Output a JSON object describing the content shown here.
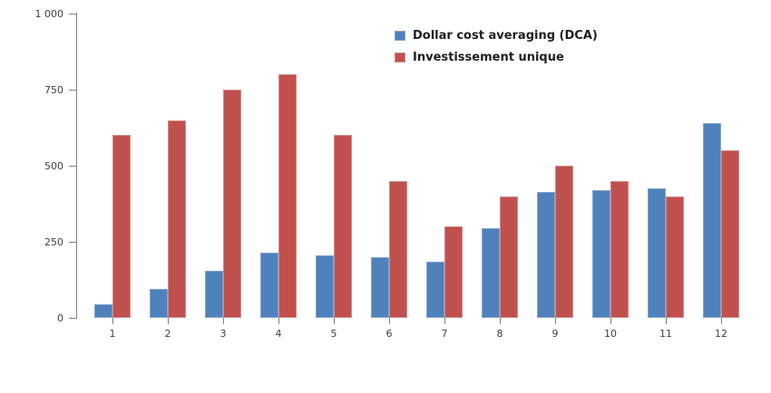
{
  "chart_data": {
    "type": "bar",
    "title": "",
    "xlabel": "",
    "ylabel": "",
    "categories": [
      "1",
      "2",
      "3",
      "4",
      "5",
      "6",
      "7",
      "8",
      "9",
      "10",
      "11",
      "12"
    ],
    "series": [
      {
        "name": "Dollar cost averaging (DCA)",
        "color": "#4f81bd",
        "border_color": "#81a5cd",
        "values": [
          45,
          95,
          155,
          215,
          205,
          200,
          185,
          295,
          415,
          420,
          425,
          640
        ]
      },
      {
        "name": "Investissement unique",
        "color": "#c0504d",
        "border_color": "#d18a88",
        "values": [
          600,
          650,
          750,
          800,
          600,
          450,
          300,
          400,
          500,
          450,
          400,
          550
        ]
      }
    ],
    "ylim": [
      0,
      1000
    ],
    "yticks": [
      0,
      250,
      500,
      750,
      1000
    ],
    "ytick_labels": [
      "0",
      "250",
      "500",
      "750",
      "1 000"
    ],
    "grid": "off",
    "legend_position": "top-center",
    "axis_color": "#808080",
    "tick_label_color": "#404040",
    "background_color": "#ffffff"
  }
}
